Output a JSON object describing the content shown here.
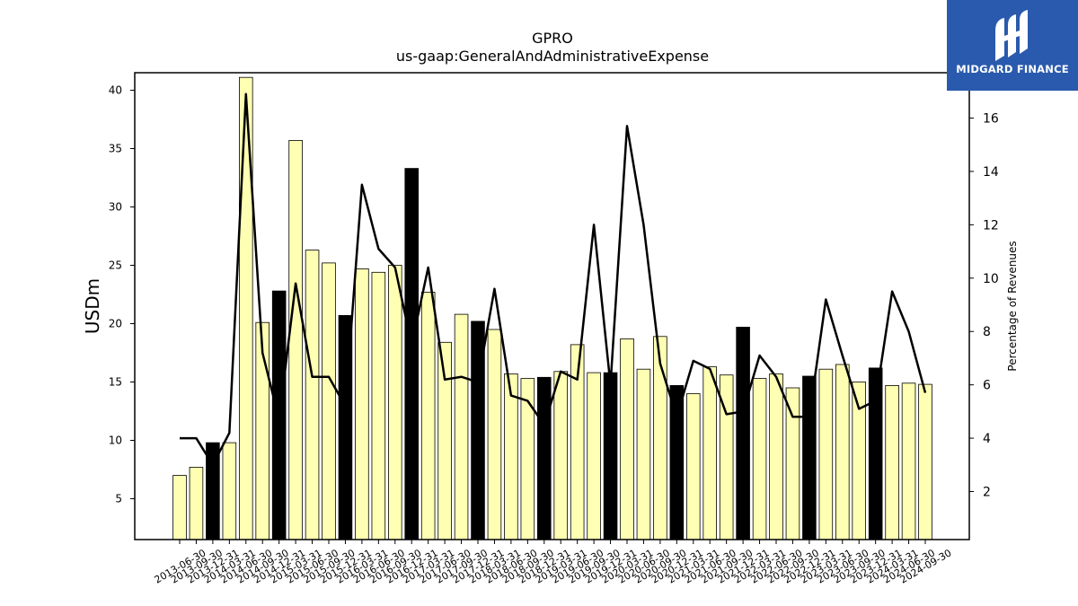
{
  "chart_data": {
    "type": "bar",
    "title": "GPRO",
    "subtitle": "us-gaap:GeneralAndAdministrativeExpense",
    "ylabel": "USDm",
    "ylabel_right": "Percentage of Revenues",
    "ylim": [
      1.5,
      41.5
    ],
    "ylim_right": [
      0.2,
      17.7
    ],
    "yticks": [
      5,
      10,
      15,
      20,
      25,
      30,
      35,
      40
    ],
    "yticks_right": [
      2,
      4,
      6,
      8,
      10,
      12,
      14,
      16
    ],
    "grid": false,
    "categories": [
      "2013-06-30",
      "2013-09-30",
      "2013-12-31",
      "2014-03-31",
      "2014-06-30",
      "2014-09-30",
      "2014-12-31",
      "2015-03-31",
      "2015-06-30",
      "2015-09-30",
      "2015-12-31",
      "2016-03-31",
      "2016-06-30",
      "2016-09-30",
      "2016-12-31",
      "2017-03-31",
      "2017-06-30",
      "2017-09-30",
      "2017-12-31",
      "2018-03-31",
      "2018-06-30",
      "2018-09-30",
      "2018-12-31",
      "2019-03-31",
      "2019-06-30",
      "2019-09-30",
      "2019-12-31",
      "2020-03-31",
      "2020-06-30",
      "2020-09-30",
      "2020-12-31",
      "2021-03-31",
      "2021-06-30",
      "2021-09-30",
      "2021-12-31",
      "2022-03-31",
      "2022-06-30",
      "2022-09-30",
      "2022-12-31",
      "2023-03-31",
      "2023-06-30",
      "2023-09-30",
      "2023-12-31",
      "2024-03-31",
      "2024-06-30",
      "2024-09-30"
    ],
    "series": [
      {
        "type": "bar",
        "axis": "left",
        "values": [
          7.0,
          7.7,
          9.8,
          9.8,
          41.1,
          20.1,
          22.8,
          35.7,
          26.3,
          25.2,
          20.7,
          24.7,
          24.4,
          25.0,
          33.3,
          22.7,
          18.4,
          20.8,
          20.2,
          19.5,
          15.7,
          15.3,
          15.4,
          15.9,
          18.2,
          15.8,
          15.8,
          18.7,
          16.1,
          18.9,
          14.7,
          14.0,
          16.3,
          15.6,
          19.7,
          15.3,
          15.7,
          14.5,
          15.5,
          16.1,
          16.5,
          15.0,
          16.2,
          14.7,
          14.9,
          14.8
        ],
        "highlight": [
          false,
          false,
          true,
          false,
          false,
          false,
          true,
          false,
          false,
          false,
          true,
          false,
          false,
          false,
          true,
          false,
          false,
          false,
          true,
          false,
          false,
          false,
          true,
          false,
          false,
          false,
          true,
          false,
          false,
          false,
          true,
          false,
          false,
          false,
          true,
          false,
          false,
          false,
          true,
          false,
          false,
          false,
          true,
          false,
          false,
          false
        ],
        "color": "#ffffb3",
        "highlight_color": "#000000"
      },
      {
        "type": "line",
        "axis": "right",
        "values": [
          4.0,
          4.0,
          3.0,
          4.2,
          16.9,
          7.2,
          4.7,
          9.8,
          6.3,
          6.3,
          5.2,
          13.5,
          11.1,
          10.4,
          7.5,
          10.4,
          6.2,
          6.3,
          6.1,
          9.6,
          5.6,
          5.4,
          4.5,
          6.5,
          6.2,
          12.0,
          6.0,
          15.7,
          12.0,
          6.8,
          4.8,
          6.9,
          6.6,
          4.9,
          5.0,
          7.1,
          6.3,
          4.8,
          4.8,
          9.2,
          7.1,
          5.1,
          5.4,
          9.5,
          8.0,
          5.7
        ],
        "color": "#000000"
      }
    ]
  },
  "logo": {
    "text": "MIDGARD FINANCE",
    "icon": "midgard-logo-icon",
    "background": "#2a5aad"
  }
}
